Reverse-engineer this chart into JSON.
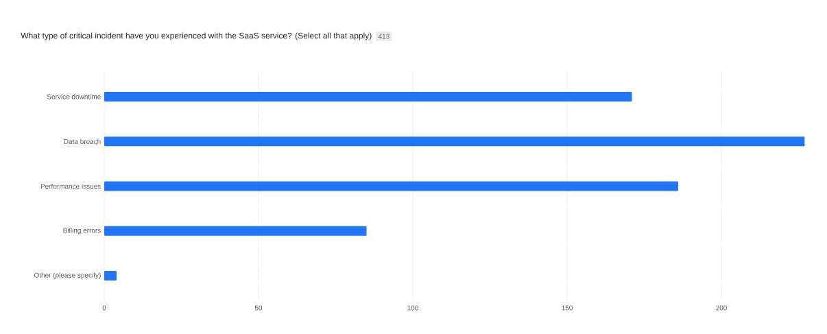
{
  "chart_data": {
    "type": "bar",
    "orientation": "horizontal",
    "title": "What type of critical incident have you experienced with the SaaS service? (Select all that apply)",
    "annotations": [
      "413"
    ],
    "categories": [
      "Service downtime",
      "Data breach",
      "Performance issues",
      "Billing errors",
      "Other (please specify)"
    ],
    "values": [
      171,
      227,
      186,
      85,
      4
    ],
    "color": "#2176f7",
    "xlim": [
      0,
      228
    ],
    "xticks": [
      0,
      50,
      100,
      150,
      200
    ],
    "grid": "x"
  }
}
